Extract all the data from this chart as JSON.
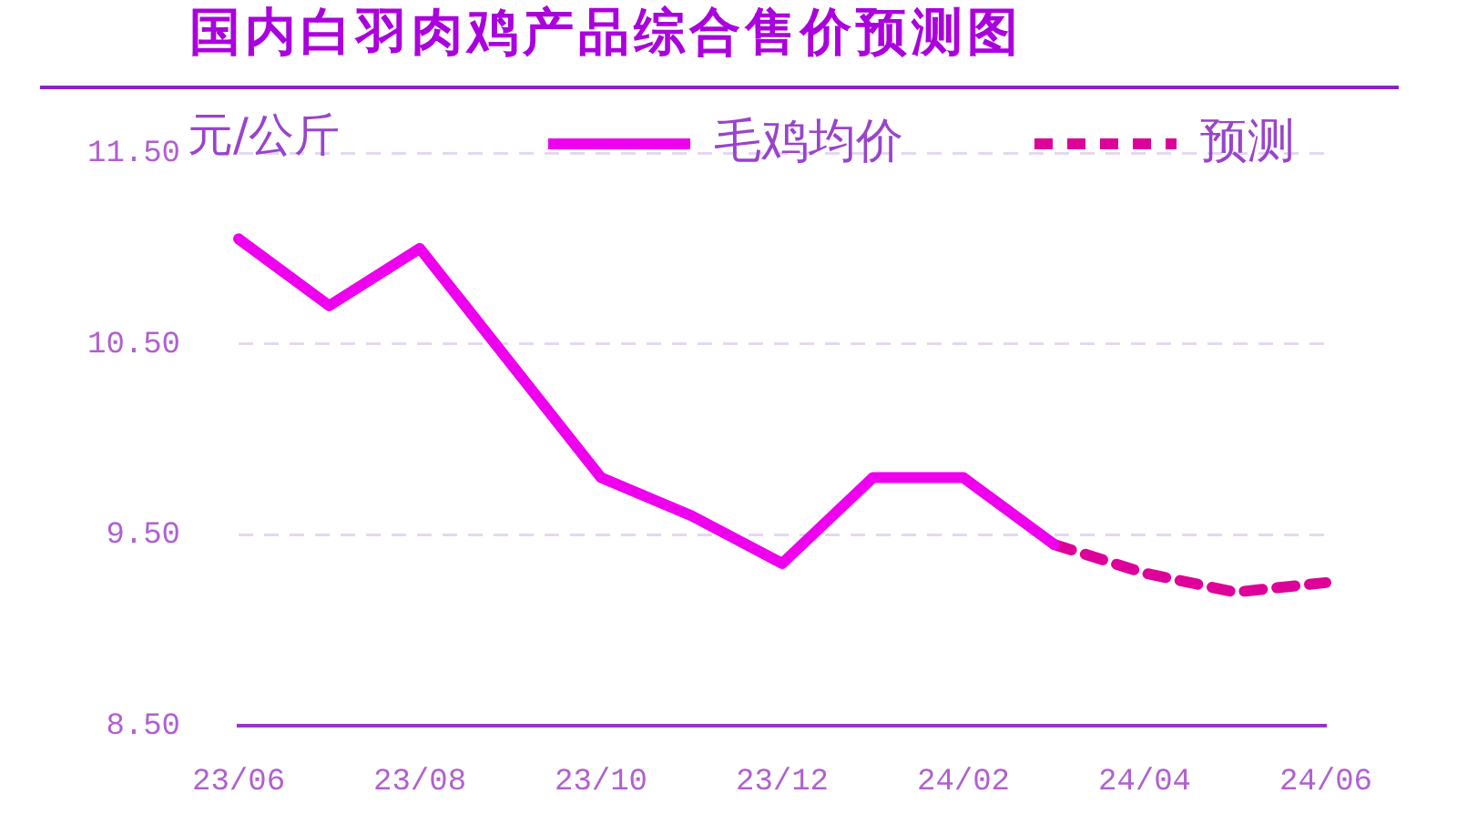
{
  "chart_data": {
    "type": "line",
    "title": "国内白羽肉鸡产品综合售价预测图",
    "ylabel": "元/公斤",
    "categories": [
      "23/06",
      null,
      "23/08",
      null,
      "23/10",
      null,
      "23/12",
      null,
      "24/02",
      null,
      "24/04",
      null,
      "24/06"
    ],
    "series": [
      {
        "name": "毛鸡均价",
        "color": "#ee00ee",
        "values": [
          11.05,
          10.7,
          11.0,
          10.4,
          9.8,
          9.6,
          9.35,
          9.8,
          9.8,
          9.45,
          null,
          null,
          null
        ]
      },
      {
        "name": "预测",
        "color": "#dd0099",
        "line_style": "dashed",
        "values": [
          null,
          null,
          null,
          null,
          null,
          null,
          null,
          null,
          null,
          9.45,
          9.3,
          9.2,
          9.25
        ]
      }
    ],
    "ylim": [
      8.5,
      11.5
    ],
    "yticks": [
      {
        "value": 8.5,
        "label": "8.50"
      },
      {
        "value": 9.5,
        "label": "9.50"
      },
      {
        "value": 10.5,
        "label": "10.50"
      },
      {
        "value": 11.5,
        "label": "11.50"
      }
    ],
    "grid": "y",
    "legend": "top right",
    "marker": "none"
  }
}
